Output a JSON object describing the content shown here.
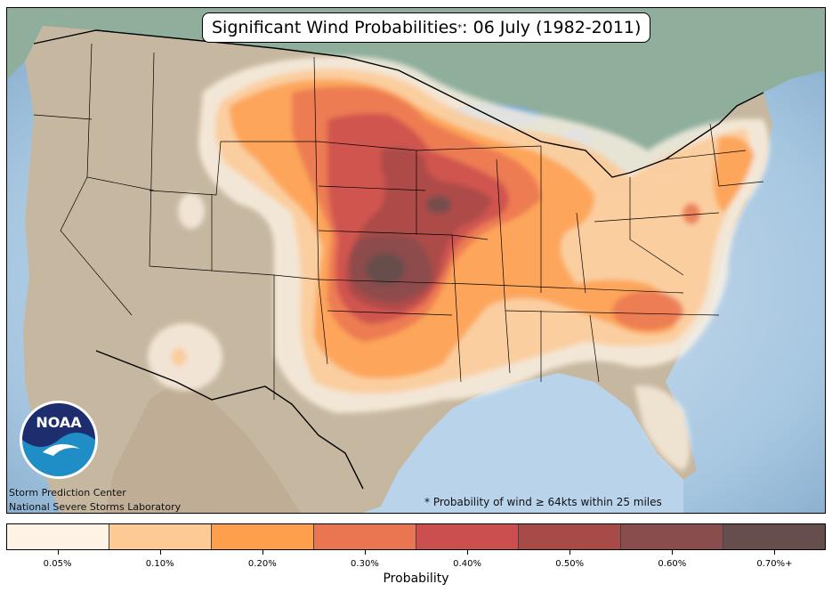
{
  "title": {
    "main": "Significant Wind Probabilities",
    "superscript": "*",
    "suffix": ": 06 July (1982-2011)"
  },
  "footnote": "* Probability of wind ≥ 64kts within 25 miles",
  "credits": {
    "line1": "Storm Prediction Center",
    "line2": "National Severe Storms Laboratory"
  },
  "logo": {
    "text": "NOAA"
  },
  "colorbar": {
    "label": "Probability",
    "ticks": [
      "0.05%",
      "0.10%",
      "0.20%",
      "0.30%",
      "0.40%",
      "0.50%",
      "0.60%",
      "0.70%+"
    ],
    "colors": [
      "#fff3e6",
      "#fdc994",
      "#fd9f4d",
      "#ea7551",
      "#cc4f4f",
      "#a84a48",
      "#8a4d4d",
      "#664e4d"
    ]
  },
  "map_colors": {
    "ocean": "#8fb6d6",
    "land": "#c4b7a1",
    "lakes": "#7aa9cc",
    "boundary": "#000000"
  }
}
